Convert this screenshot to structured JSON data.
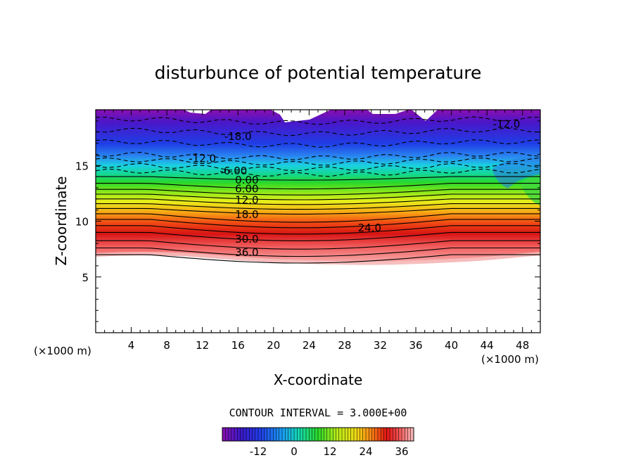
{
  "chart_data": {
    "type": "heatmap",
    "title": "disturbunce of potential temperature",
    "xlabel": "X-coordinate",
    "ylabel": "Z-coordinate",
    "x_unit": "(×1000 m)",
    "y_unit": "(×1000 m)",
    "xlim": [
      0,
      50
    ],
    "ylim": [
      0,
      20
    ],
    "x_ticks": [
      "4",
      "8",
      "12",
      "16",
      "20",
      "24",
      "28",
      "32",
      "36",
      "40",
      "44",
      "48"
    ],
    "y_ticks": [
      "5",
      "10",
      "15"
    ],
    "contour_interval_text": "CONTOUR INTERVAL = 3.000E+00",
    "contour_interval": 3,
    "colorbar": {
      "min": -24,
      "max": 40,
      "ticks": [
        "-12",
        "0",
        "12",
        "24",
        "36"
      ]
    },
    "contour_labels": [
      "-18.0",
      "-12.0",
      "-12.0",
      "-6.00",
      "0.00",
      "6.00",
      "12.0",
      "18.0",
      "24.0",
      "30.0",
      "36.0"
    ],
    "field_profile": [
      {
        "z": 6.5,
        "value": 40
      },
      {
        "z": 7.0,
        "value": 39
      },
      {
        "z": 8.0,
        "value": 34
      },
      {
        "z": 9.0,
        "value": 30
      },
      {
        "z": 10.0,
        "value": 25
      },
      {
        "z": 11.0,
        "value": 19
      },
      {
        "z": 12.0,
        "value": 12
      },
      {
        "z": 13.0,
        "value": 5
      },
      {
        "z": 14.0,
        "value": 0
      },
      {
        "z": 15.0,
        "value": -6
      },
      {
        "z": 16.0,
        "value": -12
      },
      {
        "z": 17.5,
        "value": -16
      },
      {
        "z": 18.5,
        "value": -19
      },
      {
        "z": 19.5,
        "value": -22
      }
    ]
  }
}
